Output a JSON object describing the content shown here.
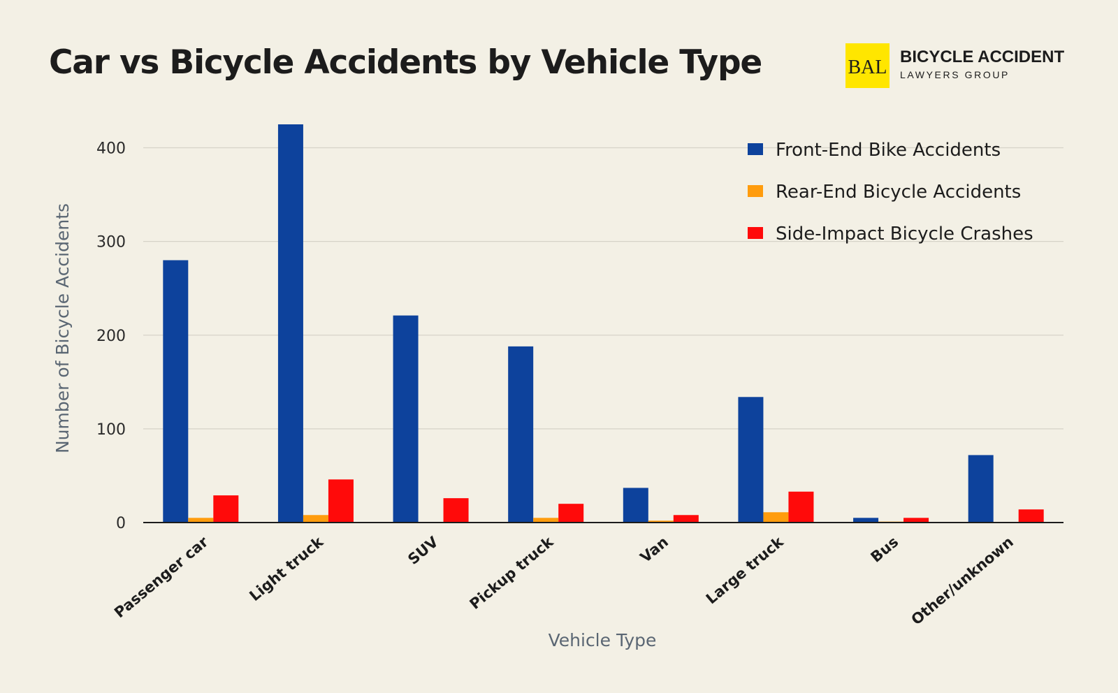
{
  "brand": {
    "logo_text": "BAL",
    "name": "BICYCLE ACCIDENT",
    "subtitle": "LAWYERS GROUP"
  },
  "chart_data": {
    "type": "bar",
    "title": "Car vs Bicycle Accidents by Vehicle Type",
    "xlabel": "Vehicle Type",
    "ylabel": "Number of Bicycle Accidents",
    "ylim": [
      0,
      425
    ],
    "yticks": [
      0,
      100,
      200,
      300,
      400
    ],
    "grid": true,
    "legend_position": "top-right",
    "categories": [
      "Passenger car",
      "Light truck",
      "SUV",
      "Pickup truck",
      "Van",
      "Large truck",
      "Bus",
      "Other/unknown"
    ],
    "series": [
      {
        "name": "Front-End Bike Accidents",
        "color": "#0d429c",
        "values": [
          280,
          425,
          221,
          188,
          37,
          134,
          5,
          72
        ]
      },
      {
        "name": "Rear-End Bicycle Accidents",
        "color": "#ff9c0d",
        "values": [
          5,
          8,
          0,
          5,
          2,
          11,
          1,
          0
        ]
      },
      {
        "name": "Side-Impact Bicycle Crashes",
        "color": "#ff0a0a",
        "values": [
          29,
          46,
          26,
          20,
          8,
          33,
          5,
          14
        ]
      }
    ]
  }
}
